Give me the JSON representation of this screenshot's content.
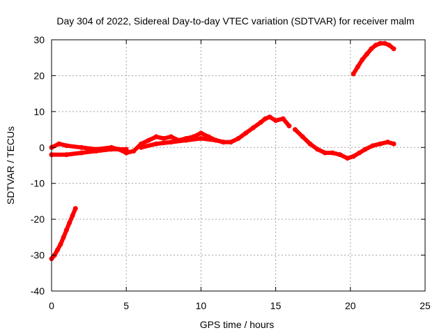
{
  "chart_data": {
    "type": "scatter",
    "title": "Day 304 of 2022, Sidereal Day-to-day VTEC variation (SDTVAR) for receiver malm",
    "xlabel": "GPS time / hours",
    "ylabel": "SDTVAR / TECUs",
    "xlim": [
      0,
      25
    ],
    "ylim": [
      -40,
      30
    ],
    "xticks": [
      0,
      5,
      10,
      15,
      20,
      25
    ],
    "yticks": [
      -40,
      -30,
      -20,
      -10,
      0,
      10,
      20,
      30
    ],
    "grid": true,
    "legend": "none",
    "series": [
      {
        "name": "segment-early-rise",
        "color": "#ff0000",
        "x": [
          0.0,
          0.2,
          0.4,
          0.6,
          0.8,
          1.0,
          1.2,
          1.4,
          1.6
        ],
        "y": [
          -31,
          -30,
          -28.5,
          -27,
          -25,
          -23,
          -21,
          -19,
          -17
        ]
      },
      {
        "name": "segment-lower-band",
        "color": "#ff0000",
        "x": [
          0.0,
          1.0,
          2.0,
          3.0,
          4.0,
          5.0
        ],
        "y": [
          -2,
          -2,
          -1.5,
          -1,
          -0.5,
          -0.5
        ]
      },
      {
        "name": "segment-main",
        "color": "#ff0000",
        "x": [
          0.0,
          0.5,
          1.0,
          2.0,
          3.0,
          4.0,
          4.5,
          5.0,
          5.5,
          6.0,
          6.5,
          7.0,
          7.5,
          8.0,
          8.5,
          9.0,
          9.5,
          10.0,
          10.5,
          11.0,
          11.5,
          12.0,
          12.5,
          13.0,
          13.5,
          14.0,
          14.3,
          14.6,
          15.0,
          15.5,
          15.9
        ],
        "y": [
          0,
          1,
          0.5,
          0,
          -0.5,
          0,
          -0.5,
          -1.5,
          -1,
          1,
          2,
          3,
          2.5,
          3,
          2,
          2.5,
          3,
          4,
          3,
          2,
          1.5,
          1.5,
          2.5,
          4,
          5.5,
          7,
          8,
          8.5,
          7.5,
          8,
          6
        ]
      },
      {
        "name": "segment-mid-band",
        "color": "#ff0000",
        "x": [
          6.0,
          7.0,
          8.0,
          9.0,
          10.0,
          11.0,
          11.5
        ],
        "y": [
          0,
          1,
          1.5,
          2,
          2.5,
          2,
          1.5
        ]
      },
      {
        "name": "segment-afternoon",
        "color": "#ff0000",
        "x": [
          16.3,
          16.8,
          17.3,
          17.8,
          18.3,
          18.8,
          19.3,
          19.8,
          20.2,
          20.6,
          21.0,
          21.5,
          22.0,
          22.5,
          22.9
        ],
        "y": [
          5,
          3,
          1,
          -0.5,
          -1.5,
          -1.5,
          -2,
          -3,
          -2.5,
          -1.5,
          -0.5,
          0.5,
          1,
          1.5,
          1
        ]
      },
      {
        "name": "segment-late-rise",
        "color": "#ff0000",
        "x": [
          20.2,
          20.5,
          20.8,
          21.1,
          21.4,
          21.7,
          22.0,
          22.3,
          22.6,
          22.9
        ],
        "y": [
          20.5,
          22.5,
          24.5,
          26,
          27.5,
          28.5,
          29,
          29,
          28.5,
          27.5
        ]
      }
    ]
  }
}
